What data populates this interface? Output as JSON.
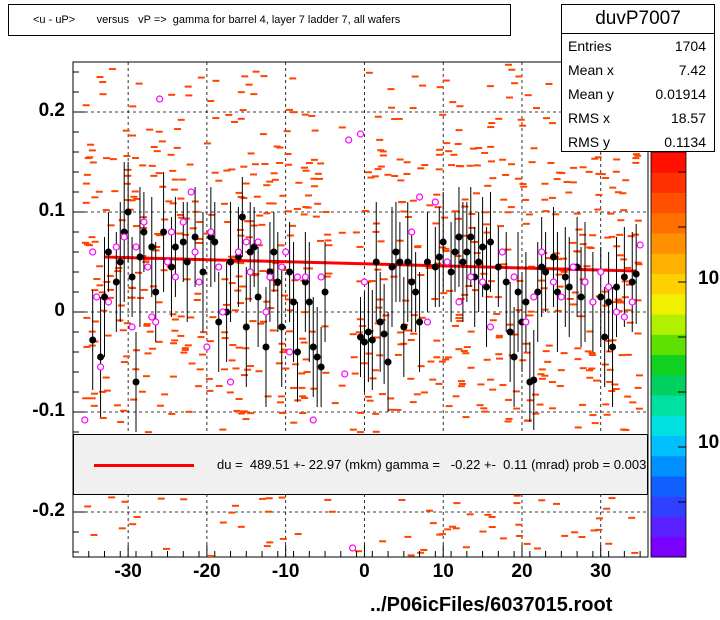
{
  "title": "<u - uP>       versus   vP =>  gamma for barrel 4, layer 7 ladder 7, all wafers",
  "stats": {
    "name": "duvP7007",
    "rows": [
      {
        "label": "Entries",
        "value": "1704"
      },
      {
        "label": "Mean x",
        "value": "7.42"
      },
      {
        "label": "Mean y",
        "value": "0.01914"
      },
      {
        "label": "RMS x",
        "value": "18.57"
      },
      {
        "label": "RMS y",
        "value": "0.1134"
      }
    ]
  },
  "legend": {
    "text": "du =  489.51 +- 22.97 (mkm) gamma =   -0.22 +-  0.11 (mrad) prob = 0.003",
    "line_color": "#ff0000"
  },
  "footer": "../P06icFiles/6037015.root",
  "colors": {
    "scatter": "#ff4400",
    "profile": "#000000",
    "open_markers": "#ff00ff",
    "fit": "#ff0000",
    "grid": "#000000"
  },
  "zscale_labels": [
    "10",
    "10"
  ],
  "chart_data": {
    "type": "scatter",
    "xlim": [
      -37,
      36
    ],
    "ylim": [
      -0.245,
      0.25
    ],
    "xticks": [
      -30,
      -20,
      -10,
      0,
      10,
      20,
      30
    ],
    "xtick_labels": [
      "-30",
      "-20",
      "-10",
      "0",
      "10",
      "20",
      "30"
    ],
    "yticks": [
      -0.2,
      -0.1,
      0,
      0.1,
      0.2
    ],
    "ytick_labels": [
      "-0.2",
      "-0.1",
      "0",
      "0.1",
      "0.2"
    ],
    "grid": true,
    "fit_line": {
      "x": [
        -33,
        34.5
      ],
      "y": [
        0.055,
        0.041
      ]
    },
    "profile_filled": [
      [
        -34.5,
        -0.028,
        0.05
      ],
      [
        -33.5,
        -0.045,
        0.06
      ],
      [
        -33,
        0.015,
        0.06
      ],
      [
        -32.5,
        0.06,
        0.04
      ],
      [
        -31.5,
        0.03,
        0.05
      ],
      [
        -31,
        0.05,
        0.06
      ],
      [
        -30.5,
        0.08,
        0.07
      ],
      [
        -30,
        0.1,
        0.05
      ],
      [
        -29.5,
        0.035,
        0.04
      ],
      [
        -29,
        -0.07,
        0.05
      ],
      [
        -28.5,
        0.055,
        0.07
      ],
      [
        -28,
        0.08,
        0.04
      ],
      [
        -27,
        0.065,
        0.05
      ],
      [
        -26.5,
        0.02,
        0.05
      ],
      [
        -25.5,
        0.08,
        0.06
      ],
      [
        -24.5,
        0.045,
        0.05
      ],
      [
        -24,
        0.065,
        0.05
      ],
      [
        -23,
        0.07,
        0.04
      ],
      [
        -22.5,
        0.05,
        0.06
      ],
      [
        -21.5,
        0.075,
        0.05
      ],
      [
        -20.5,
        0.04,
        0.06
      ],
      [
        -19.5,
        0.075,
        0.05
      ],
      [
        -19,
        0.07,
        0.04
      ],
      [
        -18.5,
        -0.01,
        0.05
      ],
      [
        -17.5,
        0.0,
        0.05
      ],
      [
        -17,
        0.05,
        0.06
      ],
      [
        -16,
        0.055,
        0.05
      ],
      [
        -15.5,
        0.095,
        0.04
      ],
      [
        -15,
        -0.015,
        0.06
      ],
      [
        -14.5,
        0.06,
        0.05
      ],
      [
        -14,
        0.065,
        0.04
      ],
      [
        -13.5,
        0.015,
        0.05
      ],
      [
        -12.5,
        -0.035,
        0.06
      ],
      [
        -12,
        0.04,
        0.05
      ],
      [
        -11.5,
        0.06,
        0.04
      ],
      [
        -11,
        0.03,
        0.05
      ],
      [
        -10.5,
        -0.015,
        0.06
      ],
      [
        -9.5,
        0.04,
        0.05
      ],
      [
        -9,
        0.01,
        0.06
      ],
      [
        -8.5,
        -0.04,
        0.05
      ],
      [
        -7.5,
        0.03,
        0.05
      ],
      [
        -7,
        0.01,
        0.06
      ],
      [
        -6.5,
        -0.035,
        0.05
      ],
      [
        -6,
        -0.045,
        0.05
      ],
      [
        -5.5,
        -0.055,
        0.04
      ],
      [
        -5,
        0.02,
        0.05
      ],
      [
        -0.5,
        -0.025,
        0.04
      ],
      [
        0,
        -0.03,
        0.05
      ],
      [
        0.5,
        -0.02,
        0.05
      ],
      [
        1,
        -0.028,
        0.05
      ],
      [
        1.5,
        0.05,
        0.06
      ],
      [
        2,
        -0.01,
        0.05
      ],
      [
        2.5,
        -0.022,
        0.05
      ],
      [
        3,
        -0.05,
        0.05
      ],
      [
        3.5,
        0.045,
        0.06
      ],
      [
        4,
        0.06,
        0.05
      ],
      [
        4.5,
        0.05,
        0.04
      ],
      [
        5,
        -0.015,
        0.05
      ],
      [
        5.5,
        0.05,
        0.06
      ],
      [
        6,
        0.03,
        0.05
      ],
      [
        6.5,
        0.02,
        0.04
      ],
      [
        7,
        -0.01,
        0.05
      ],
      [
        8,
        0.05,
        0.05
      ],
      [
        9,
        0.045,
        0.04
      ],
      [
        9.5,
        0.055,
        0.05
      ],
      [
        10,
        0.07,
        0.05
      ],
      [
        11,
        0.04,
        0.05
      ],
      [
        11.5,
        0.06,
        0.04
      ],
      [
        12,
        0.075,
        0.05
      ],
      [
        12.5,
        0.05,
        0.06
      ],
      [
        13,
        0.06,
        0.05
      ],
      [
        13.5,
        0.075,
        0.05
      ],
      [
        14,
        0.035,
        0.05
      ],
      [
        14.5,
        0.05,
        0.05
      ],
      [
        15,
        0.065,
        0.05
      ],
      [
        15.5,
        0.025,
        0.06
      ],
      [
        16,
        0.07,
        0.05
      ],
      [
        17,
        0.045,
        0.04
      ],
      [
        18,
        0.03,
        0.05
      ],
      [
        18.5,
        -0.02,
        0.05
      ],
      [
        19,
        -0.045,
        0.05
      ],
      [
        19.5,
        0.02,
        0.06
      ],
      [
        20,
        -0.01,
        0.05
      ],
      [
        20.5,
        0.01,
        0.05
      ],
      [
        21,
        -0.07,
        0.04
      ],
      [
        21.5,
        -0.068,
        0.05
      ],
      [
        22,
        0.02,
        0.05
      ],
      [
        22.5,
        0.045,
        0.05
      ],
      [
        23,
        0.04,
        0.04
      ],
      [
        24,
        0.055,
        0.05
      ],
      [
        24.5,
        0.02,
        0.06
      ],
      [
        25.5,
        0.035,
        0.05
      ],
      [
        26,
        0.025,
        0.05
      ],
      [
        27,
        0.045,
        0.05
      ],
      [
        27.5,
        0.015,
        0.05
      ],
      [
        28,
        0.03,
        0.06
      ],
      [
        29,
        0.01,
        0.05
      ],
      [
        30,
        0.015,
        0.05
      ],
      [
        30.5,
        -0.025,
        0.05
      ],
      [
        31,
        0.01,
        0.05
      ],
      [
        31.5,
        -0.035,
        0.06
      ],
      [
        32,
        0.025,
        0.05
      ],
      [
        33,
        0.035,
        0.05
      ],
      [
        34,
        0.03,
        0.05
      ],
      [
        34.5,
        0.038,
        0.05
      ]
    ],
    "profile_open": [
      [
        -35.5,
        -0.108
      ],
      [
        -34.5,
        0.06
      ],
      [
        -34,
        0.015
      ],
      [
        -33.5,
        -0.055
      ],
      [
        -32.5,
        0.01
      ],
      [
        -31.5,
        0.065
      ],
      [
        -30.5,
        0.075
      ],
      [
        -29.5,
        -0.015
      ],
      [
        -29,
        0.065
      ],
      [
        -28,
        0.09
      ],
      [
        -27.5,
        0.045
      ],
      [
        -27,
        -0.005
      ],
      [
        -26.5,
        -0.01
      ],
      [
        -26,
        0.213
      ],
      [
        -25,
        0.05
      ],
      [
        -24.5,
        0.08
      ],
      [
        -24,
        0.035
      ],
      [
        -23,
        0.09
      ],
      [
        -22,
        0.12
      ],
      [
        -21.5,
        0.06
      ],
      [
        -21,
        0.03
      ],
      [
        -20,
        -0.035
      ],
      [
        -19.5,
        0.08
      ],
      [
        -18.5,
        0.045
      ],
      [
        -18,
        0.0
      ],
      [
        -17,
        -0.07
      ],
      [
        -16,
        0.06
      ],
      [
        -15,
        0.07
      ],
      [
        -14.5,
        0.04
      ],
      [
        -13.5,
        0.07
      ],
      [
        -12.5,
        0.0
      ],
      [
        -12,
        0.035
      ],
      [
        -10.5,
        0.045
      ],
      [
        -10,
        0.06
      ],
      [
        -9.5,
        -0.04
      ],
      [
        -8.5,
        0.035
      ],
      [
        -7.5,
        0.035
      ],
      [
        -6.5,
        -0.108
      ],
      [
        -5.5,
        0.035
      ],
      [
        -2.5,
        -0.062
      ],
      [
        -2,
        0.172
      ],
      [
        -1.5,
        -0.236
      ],
      [
        -0.5,
        0.178
      ],
      [
        0,
        0.03
      ],
      [
        6,
        0.08
      ],
      [
        7,
        0.115
      ],
      [
        8,
        -0.01
      ],
      [
        9,
        0.11
      ],
      [
        10.5,
        0.05
      ],
      [
        12,
        0.01
      ],
      [
        13.5,
        0.035
      ],
      [
        15,
        0.03
      ],
      [
        16,
        -0.015
      ],
      [
        17.5,
        0.06
      ],
      [
        19,
        0.035
      ],
      [
        20.5,
        -0.01
      ],
      [
        21.5,
        0.015
      ],
      [
        22.5,
        0.06
      ],
      [
        24,
        0.03
      ],
      [
        25,
        0.015
      ],
      [
        26.5,
        0.045
      ],
      [
        28,
        0.03
      ],
      [
        29,
        0.01
      ],
      [
        30,
        0.04
      ],
      [
        31,
        0.025
      ],
      [
        32,
        0.0
      ],
      [
        33,
        -0.005
      ],
      [
        34,
        0.01
      ],
      [
        35,
        0.067
      ]
    ]
  }
}
